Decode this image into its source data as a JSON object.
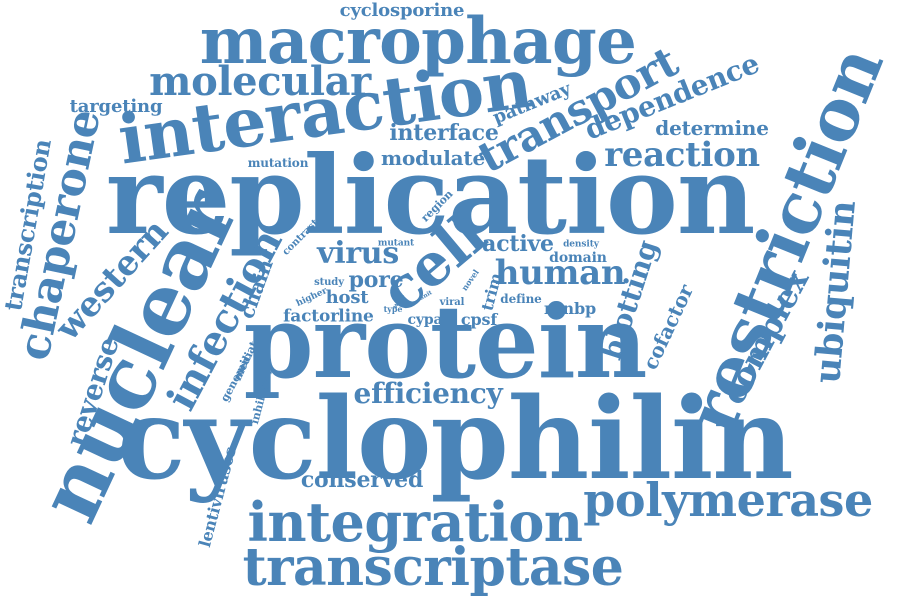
{
  "style": {
    "word_color": "#4A84B8",
    "background": "#FFFFFF"
  },
  "words": [
    {
      "text": "cyclophilin"
    },
    {
      "text": "replication"
    },
    {
      "text": "protein"
    },
    {
      "text": "nuclear"
    },
    {
      "text": "macrophage"
    },
    {
      "text": "interaction"
    },
    {
      "text": "restriction"
    },
    {
      "text": "integration"
    },
    {
      "text": "transcriptase"
    },
    {
      "text": "polymerase"
    },
    {
      "text": "cell"
    },
    {
      "text": "molecular"
    },
    {
      "text": "transport"
    },
    {
      "text": "chaperone"
    },
    {
      "text": "infection"
    },
    {
      "text": "human"
    },
    {
      "text": "reaction"
    },
    {
      "text": "dependence"
    },
    {
      "text": "ubiquitin"
    },
    {
      "text": "complex"
    },
    {
      "text": "western"
    },
    {
      "text": "efficiency"
    },
    {
      "text": "blotting"
    },
    {
      "text": "reverse"
    },
    {
      "text": "virus"
    },
    {
      "text": "transcription"
    },
    {
      "text": "interface"
    },
    {
      "text": "conserved"
    },
    {
      "text": "determine"
    },
    {
      "text": "cyclosporine"
    },
    {
      "text": "pathway"
    },
    {
      "text": "targeting"
    },
    {
      "text": "modulate"
    },
    {
      "text": "active"
    },
    {
      "text": "cofactor"
    },
    {
      "text": "pore"
    },
    {
      "text": "chain"
    },
    {
      "text": "lentiviruses"
    },
    {
      "text": "host"
    },
    {
      "text": "factor"
    },
    {
      "text": "line"
    },
    {
      "text": "domain"
    },
    {
      "text": "ranbp"
    },
    {
      "text": "trim"
    },
    {
      "text": "cpsf"
    },
    {
      "text": "cypa"
    },
    {
      "text": "mutation"
    },
    {
      "text": "region"
    },
    {
      "text": "contrast"
    },
    {
      "text": "mutant"
    },
    {
      "text": "density"
    },
    {
      "text": "study"
    },
    {
      "text": "higher"
    },
    {
      "text": "define"
    },
    {
      "text": "viral"
    },
    {
      "text": "type"
    },
    {
      "text": "wild"
    },
    {
      "text": "unit"
    },
    {
      "text": "novel"
    },
    {
      "text": "mediate"
    },
    {
      "text": "genomic"
    },
    {
      "text": "inhibition"
    }
  ]
}
